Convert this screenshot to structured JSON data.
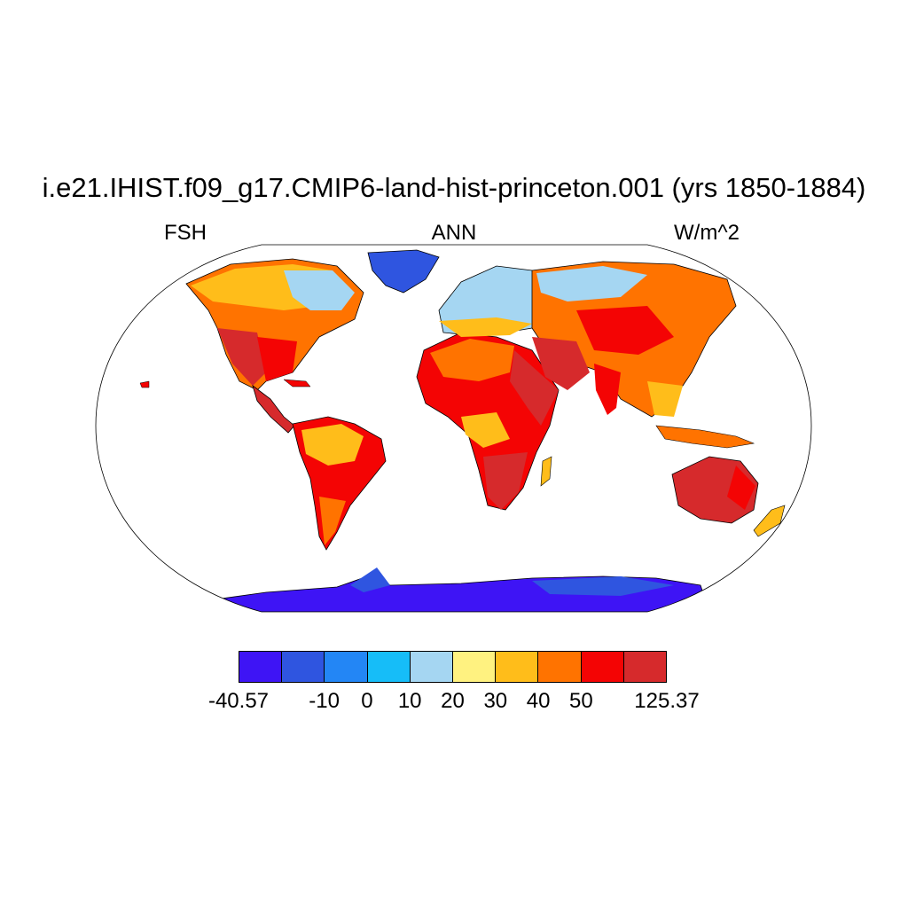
{
  "header": {
    "title": "i.e21.IHIST.f09_g17.CMIP6-land-hist-princeton.001 (yrs 1850-1884)",
    "variable": "FSH",
    "season": "ANN",
    "units": "W/m^2"
  },
  "colorbar": {
    "colors": [
      "#3e14f5",
      "#2f55e0",
      "#2386f5",
      "#16bdf8",
      "#a5d6f2",
      "#fff280",
      "#ffbd1a",
      "#ff7300",
      "#f40404",
      "#d62a2c"
    ],
    "labels": [
      "-40.57",
      "",
      "-10",
      "0",
      "10",
      "20",
      "30",
      "40",
      "50",
      "",
      "125.37"
    ]
  },
  "map": {
    "projection": "Robinson",
    "background": "#ffffff",
    "coastline_color": "#000000"
  }
}
